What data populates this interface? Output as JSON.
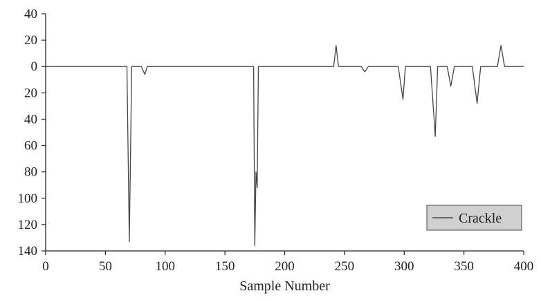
{
  "chart_data": {
    "type": "line",
    "title": "",
    "xlabel": "Sample Number",
    "ylabel": "",
    "xlim": [
      0,
      400
    ],
    "ylim": [
      -140,
      40
    ],
    "x_ticks": [
      0,
      50,
      100,
      150,
      200,
      250,
      300,
      350,
      400
    ],
    "x_tick_labels": [
      "0",
      "50",
      "100",
      "150",
      "200",
      "250",
      "300",
      "350",
      "400"
    ],
    "y_ticks": [
      40,
      20,
      0,
      -20,
      -40,
      -60,
      -80,
      -100,
      -120,
      -140
    ],
    "y_tick_labels": [
      "40",
      "20",
      "0",
      "20",
      "40",
      "60",
      "80",
      "100",
      "120",
      "140"
    ],
    "grid": false,
    "legend_position": "bottom-right",
    "series": [
      {
        "name": "Crackle",
        "color": "#444444",
        "points": [
          [
            0,
            0
          ],
          [
            68,
            0
          ],
          [
            70,
            -133
          ],
          [
            72,
            0
          ],
          [
            80,
            0
          ],
          [
            83,
            -6
          ],
          [
            85,
            0
          ],
          [
            174,
            0
          ],
          [
            175,
            -136
          ],
          [
            176,
            -80
          ],
          [
            177,
            -92
          ],
          [
            178,
            0
          ],
          [
            241,
            0
          ],
          [
            243,
            16
          ],
          [
            245,
            0
          ],
          [
            264,
            0
          ],
          [
            267,
            -4
          ],
          [
            270,
            0
          ],
          [
            295,
            0
          ],
          [
            299,
            -25
          ],
          [
            301,
            0
          ],
          [
            322,
            0
          ],
          [
            326,
            -53
          ],
          [
            328,
            0
          ],
          [
            336,
            0
          ],
          [
            339,
            -15
          ],
          [
            342,
            0
          ],
          [
            357,
            0
          ],
          [
            361,
            -28
          ],
          [
            364,
            0
          ],
          [
            378,
            0
          ],
          [
            381,
            16
          ],
          [
            384,
            0
          ],
          [
            400,
            0
          ]
        ]
      }
    ]
  }
}
